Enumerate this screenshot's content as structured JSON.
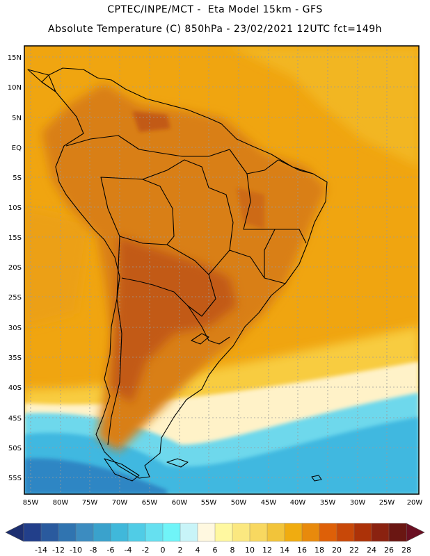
{
  "header": {
    "line1": "CPTEC/INPE/MCT -  Eta Model 15km - GFS",
    "line2": "Absolute Temperature (C) 850hPa - 23/02/2021 12UTC fct=149h"
  },
  "map": {
    "lat_labels": [
      "15N",
      "10N",
      "5N",
      "EQ",
      "5S",
      "10S",
      "15S",
      "20S",
      "25S",
      "30S",
      "35S",
      "40S",
      "45S",
      "50S",
      "55S"
    ],
    "lon_labels": [
      "85W",
      "80W",
      "75W",
      "70W",
      "65W",
      "60W",
      "55W",
      "50W",
      "45W",
      "40W",
      "35W",
      "30W",
      "25W",
      "20W"
    ],
    "colors": {
      "ocean_base": "#f0a510",
      "land_warm": "#d97f12",
      "land_hot": "#c25a14",
      "cold": "#3fb8e0",
      "cool": "#6ed8ec",
      "pale": "#fff2c8",
      "border": "#000000"
    }
  },
  "colorbar": {
    "labels": [
      "-14",
      "-12",
      "-10",
      "-8",
      "-6",
      "-4",
      "-2",
      "0",
      "2",
      "4",
      "6",
      "8",
      "10",
      "12",
      "14",
      "16",
      "18",
      "20",
      "22",
      "24",
      "26",
      "28"
    ],
    "colors": [
      "#223f8a",
      "#2a5a9e",
      "#3074b0",
      "#3c8cc0",
      "#3aa2cc",
      "#40b8da",
      "#50cce6",
      "#66e0f0",
      "#70f4f8",
      "#c8f4f8",
      "#fff8e0",
      "#fff8a0",
      "#fbe880",
      "#f8d860",
      "#f2c43a",
      "#f0ac10",
      "#e88a0c",
      "#de6008",
      "#c84808",
      "#ac3208",
      "#8a2210",
      "#6a1612"
    ],
    "left_arrow_color": "#1d2f70",
    "right_arrow_color": "#6a0f22"
  }
}
